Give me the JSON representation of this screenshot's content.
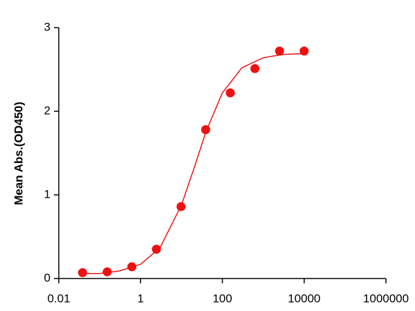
{
  "chart_data": {
    "type": "scatter",
    "y_label": "Mean Abs.(OD450)",
    "log_x": true,
    "xlim": [
      0.01,
      1000000
    ],
    "xticks": [
      0.01,
      1,
      100,
      10000,
      1000000
    ],
    "ylim": [
      0,
      3
    ],
    "yticks": [
      0,
      1,
      2,
      3
    ],
    "series": [
      {
        "kind": "points",
        "color": "#ee1111",
        "x": [
          0.03814697265625,
          0.152587890625,
          0.6103515625,
          2.44140625,
          9.765625,
          39.0625,
          156.25,
          625,
          2500,
          10000
        ],
        "values": [
          0.07,
          0.08,
          0.14,
          0.35,
          0.86,
          1.78,
          2.22,
          2.51,
          2.72,
          2.72
        ]
      },
      {
        "kind": "line",
        "color": "#ee1111",
        "x": [
          0.04,
          0.1,
          0.3,
          1,
          3,
          10,
          20,
          40,
          100,
          300,
          1000,
          3000,
          10000
        ],
        "values": [
          0.06,
          0.06,
          0.09,
          0.17,
          0.37,
          0.88,
          1.31,
          1.76,
          2.22,
          2.52,
          2.64,
          2.68,
          2.69
        ]
      }
    ]
  }
}
